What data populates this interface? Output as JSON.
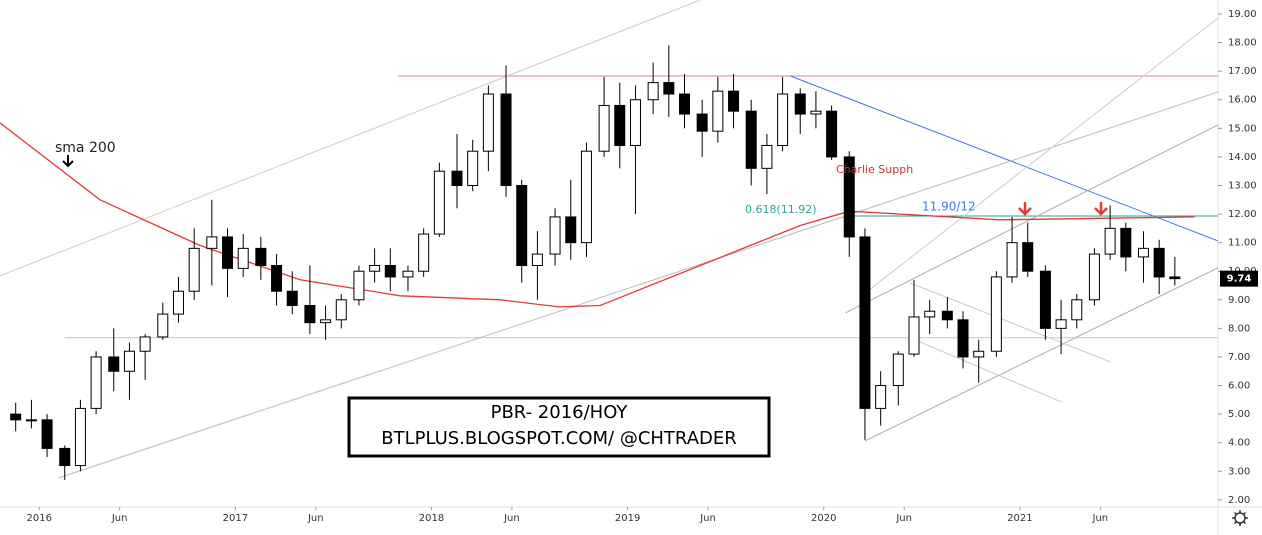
{
  "chart_data": {
    "type": "candlestick",
    "title": "PBR- 2016/HOY",
    "subtitle": "BTLPLUS.BLOGSPOT.COM/ @CHTRADER",
    "annotations": {
      "sma_label": "sma 200",
      "note": "Charlie Supph",
      "fib": "0.618(11.92)",
      "zone": "11.90/12"
    },
    "up_color": "#ffffff",
    "down_color": "#000000",
    "x": [
      2015.88,
      2015.96,
      2016.04,
      2016.13,
      2016.21,
      2016.29,
      2016.38,
      2016.46,
      2016.54,
      2016.63,
      2016.71,
      2016.79,
      2016.88,
      2016.96,
      2017.04,
      2017.13,
      2017.21,
      2017.29,
      2017.38,
      2017.46,
      2017.54,
      2017.63,
      2017.71,
      2017.79,
      2017.88,
      2017.96,
      2018.04,
      2018.13,
      2018.21,
      2018.29,
      2018.38,
      2018.46,
      2018.54,
      2018.63,
      2018.71,
      2018.79,
      2018.88,
      2018.96,
      2019.04,
      2019.13,
      2019.21,
      2019.29,
      2019.38,
      2019.46,
      2019.54,
      2019.63,
      2019.71,
      2019.79,
      2019.88,
      2019.96,
      2020.04,
      2020.13,
      2020.21,
      2020.29,
      2020.38,
      2020.46,
      2020.54,
      2020.63,
      2020.71,
      2020.79,
      2020.88,
      2020.96,
      2021.04,
      2021.13,
      2021.21,
      2021.29,
      2021.38,
      2021.46,
      2021.54,
      2021.63,
      2021.71,
      2021.79
    ],
    "open": [
      5.0,
      4.8,
      4.8,
      3.8,
      3.2,
      5.2,
      7.0,
      6.5,
      7.2,
      7.7,
      8.5,
      9.3,
      10.8,
      11.2,
      10.1,
      10.8,
      10.2,
      9.3,
      8.8,
      8.2,
      8.3,
      9.0,
      10.0,
      10.2,
      9.8,
      10.0,
      11.3,
      13.5,
      13.0,
      14.2,
      16.2,
      13.0,
      10.2,
      10.6,
      11.9,
      11.0,
      14.2,
      15.8,
      14.4,
      16.0,
      16.6,
      16.2,
      15.5,
      14.9,
      16.3,
      15.6,
      13.6,
      14.4,
      16.2,
      15.5,
      15.6,
      14.0,
      11.2,
      5.2,
      6.0,
      7.1,
      8.4,
      8.6,
      8.3,
      7.0,
      7.2,
      9.8,
      11.0,
      10.0,
      8.0,
      8.3,
      9.0,
      10.6,
      11.5,
      10.5,
      10.8,
      9.8
    ],
    "high": [
      5.4,
      5.5,
      5.0,
      3.9,
      5.5,
      7.2,
      8.0,
      7.5,
      7.8,
      8.9,
      9.8,
      11.5,
      12.5,
      11.5,
      11.3,
      11.2,
      10.6,
      10.0,
      10.2,
      8.8,
      9.2,
      10.2,
      10.8,
      10.8,
      10.2,
      11.5,
      13.8,
      14.8,
      14.6,
      16.5,
      17.2,
      13.2,
      11.4,
      12.2,
      13.2,
      14.5,
      16.8,
      16.6,
      16.5,
      17.3,
      17.9,
      16.9,
      16.0,
      16.8,
      16.9,
      16.0,
      14.8,
      16.8,
      16.4,
      16.3,
      15.8,
      14.2,
      11.5,
      6.5,
      7.2,
      9.7,
      9.0,
      9.1,
      8.6,
      7.6,
      10.0,
      11.9,
      11.7,
      10.2,
      9.0,
      9.2,
      10.8,
      12.3,
      11.7,
      11.4,
      11.1,
      10.5
    ],
    "low": [
      4.4,
      4.5,
      3.5,
      2.7,
      3.0,
      5.0,
      5.8,
      5.5,
      6.2,
      7.6,
      8.2,
      9.0,
      9.5,
      9.1,
      9.8,
      9.7,
      8.8,
      8.5,
      7.8,
      7.6,
      8.0,
      8.8,
      9.6,
      9.3,
      9.3,
      9.8,
      11.2,
      12.2,
      12.8,
      13.5,
      12.6,
      9.6,
      9.0,
      10.2,
      10.4,
      10.5,
      14.0,
      13.6,
      12.0,
      15.5,
      15.4,
      15.0,
      14.0,
      14.5,
      15.0,
      13.0,
      12.7,
      14.2,
      14.8,
      15.0,
      13.9,
      10.5,
      4.1,
      4.6,
      5.3,
      7.0,
      7.8,
      8.0,
      6.6,
      6.1,
      7.0,
      9.6,
      9.8,
      7.6,
      7.1,
      8.0,
      8.8,
      10.4,
      10.0,
      9.6,
      9.2,
      9.5
    ],
    "close": [
      4.8,
      4.8,
      3.8,
      3.2,
      5.2,
      7.0,
      6.5,
      7.2,
      7.7,
      8.5,
      9.3,
      10.8,
      11.2,
      10.1,
      10.8,
      10.2,
      9.3,
      8.8,
      8.2,
      8.3,
      9.0,
      10.0,
      10.2,
      9.8,
      10.0,
      11.3,
      13.5,
      13.0,
      14.2,
      16.2,
      13.0,
      10.2,
      10.6,
      11.9,
      11.0,
      14.2,
      15.8,
      14.4,
      16.0,
      16.6,
      16.2,
      15.5,
      14.9,
      16.3,
      15.6,
      13.6,
      14.4,
      16.2,
      15.5,
      15.6,
      14.0,
      11.2,
      5.2,
      6.0,
      7.1,
      8.4,
      8.6,
      8.3,
      7.0,
      7.2,
      9.8,
      11.0,
      10.0,
      8.0,
      8.3,
      9.0,
      10.6,
      11.5,
      10.5,
      10.8,
      9.8,
      9.74
    ],
    "sma": {
      "color": "#e53935",
      "x": [
        2015.8,
        2016.31,
        2016.82,
        2017.33,
        2017.84,
        2018.35,
        2018.65,
        2018.86,
        2019.37,
        2019.88,
        2020.13,
        2020.39,
        2020.9,
        2021.41,
        2021.89
      ],
      "values": [
        15.19,
        12.5,
        10.9,
        9.7,
        9.14,
        9.0,
        8.75,
        8.8,
        10.2,
        11.6,
        12.1,
        12.0,
        11.8,
        11.85,
        11.9
      ]
    },
    "lines": [
      {
        "color": "#f08080",
        "x": [
          2017.83,
          2022.01
        ],
        "y": [
          16.83,
          16.83
        ]
      },
      {
        "color": "#f4b4b4",
        "x": [
          2016.13,
          2022.01
        ],
        "y": [
          7.67,
          7.67
        ]
      },
      {
        "color": "#3b78e7",
        "x": [
          2019.83,
          2022.01
        ],
        "y": [
          16.83,
          11.06
        ]
      },
      {
        "color": "#26a69a",
        "x": [
          2020.11,
          2022.01
        ],
        "y": [
          11.93,
          11.93
        ]
      },
      {
        "color": "#cccccc",
        "x": [
          2015.8,
          2019.37
        ],
        "y": [
          9.84,
          19.49
        ]
      },
      {
        "color": "#bbbbbb",
        "x": [
          2016.1,
          2022.01
        ],
        "y": [
          2.77,
          16.27
        ]
      },
      {
        "color": "#cccccc",
        "x": [
          2020.18,
          2022.01
        ],
        "y": [
          9.07,
          18.86
        ]
      },
      {
        "color": "#aaaaaa",
        "x": [
          2020.21,
          2022.01
        ],
        "y": [
          4.06,
          10.12
        ]
      },
      {
        "color": "#aaaaaa",
        "x": [
          2020.11,
          2022.01
        ],
        "y": [
          8.54,
          15.12
        ]
      },
      {
        "color": "#c8c8c8",
        "x": [
          2020.44,
          2021.46
        ],
        "y": [
          9.59,
          6.83
        ]
      },
      {
        "color": "#c8c8c8",
        "x": [
          2020.44,
          2021.21
        ],
        "y": [
          7.67,
          5.43
        ]
      }
    ],
    "xlim": [
      2015.8,
      2022.01
    ],
    "ylim": [
      1.75,
      19.49
    ],
    "xticks": [
      {
        "value": 2016,
        "label": "2016"
      },
      {
        "value": 2016.41,
        "label": "Jun"
      },
      {
        "value": 2017,
        "label": "2017"
      },
      {
        "value": 2017.41,
        "label": "Jun"
      },
      {
        "value": 2018,
        "label": "2018"
      },
      {
        "value": 2018.41,
        "label": "Jun"
      },
      {
        "value": 2019,
        "label": "2019"
      },
      {
        "value": 2019.41,
        "label": "Jun"
      },
      {
        "value": 2020,
        "label": "2020"
      },
      {
        "value": 2020.41,
        "label": "Jun"
      },
      {
        "value": 2021,
        "label": "2021"
      },
      {
        "value": 2021.41,
        "label": "Jun"
      }
    ],
    "yticks": [
      {
        "value": 2,
        "label": "2.00"
      },
      {
        "value": 3,
        "label": "3.00"
      },
      {
        "value": 4,
        "label": "4.00"
      },
      {
        "value": 5,
        "label": "5.00"
      },
      {
        "value": 6,
        "label": "6.00"
      },
      {
        "value": 7,
        "label": "7.00"
      },
      {
        "value": 8,
        "label": "8.00"
      },
      {
        "value": 9,
        "label": "9.00"
      },
      {
        "value": 10,
        "label": "10.00"
      },
      {
        "value": 11,
        "label": "11.00"
      },
      {
        "value": 12,
        "label": "12.00"
      },
      {
        "value": 13,
        "label": "13.00"
      },
      {
        "value": 14,
        "label": "14.00"
      },
      {
        "value": 15,
        "label": "15.00"
      },
      {
        "value": 16,
        "label": "16.00"
      },
      {
        "value": 17,
        "label": "17.00"
      },
      {
        "value": 18,
        "label": "18.00"
      },
      {
        "value": 19,
        "label": "19.00"
      }
    ]
  }
}
